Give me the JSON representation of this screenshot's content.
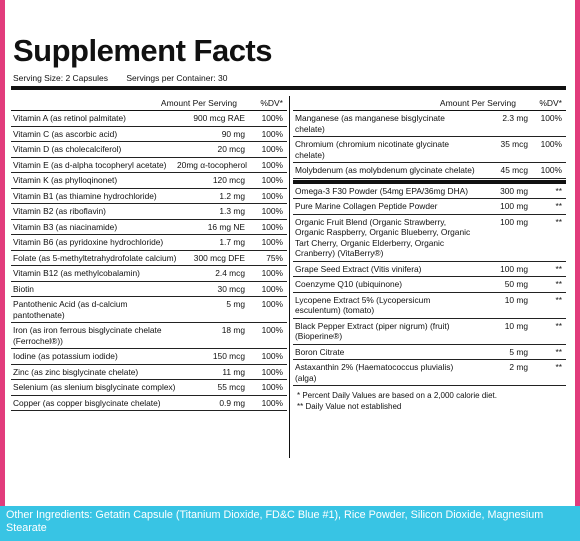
{
  "title": "Supplement Facts",
  "serving_size": "Serving Size: 2 Capsules",
  "servings_per_container": "Servings per Container: 30",
  "header": {
    "amount": "Amount Per Serving",
    "dv": "%DV*"
  },
  "left_rows": [
    {
      "name": "Vitamin A (as retinol palmitate)",
      "amount": "900 mcg RAE",
      "dv": "100%"
    },
    {
      "name": "Vitamin C (as ascorbic acid)",
      "amount": "90 mg",
      "dv": "100%"
    },
    {
      "name": "Vitamin D (as cholecalciferol)",
      "amount": "20 mcg",
      "dv": "100%"
    },
    {
      "name": "Vitamin E (as d-alpha tocopheryl acetate)",
      "amount": "20mg α-tocopherol",
      "dv": "100%"
    },
    {
      "name": "Vitamin K (as phylloqinonet)",
      "amount": "120 mcg",
      "dv": "100%"
    },
    {
      "name": "Vitamin B1 (as thiamine hydrochloride)",
      "amount": "1.2 mg",
      "dv": "100%"
    },
    {
      "name": "Vitamin B2 (as riboflavin)",
      "amount": "1.3 mg",
      "dv": "100%"
    },
    {
      "name": "Vitamin B3 (as niacinamide)",
      "amount": "16 mg NE",
      "dv": "100%"
    },
    {
      "name": "Vitamin B6 (as pyridoxine hydrochloride)",
      "amount": "1.7 mg",
      "dv": "100%"
    },
    {
      "name": "Folate (as 5-methyltetrahydrofolate calcium)",
      "amount": "300 mcg DFE",
      "dv": "75%"
    },
    {
      "name": "Vitamin B12 (as methylcobalamin)",
      "amount": "2.4 mcg",
      "dv": "100%"
    },
    {
      "name": "Biotin",
      "amount": "30 mcg",
      "dv": "100%"
    },
    {
      "name": "Pantothenic Acid (as d-calcium pantothenate)",
      "amount": "5 mg",
      "dv": "100%"
    },
    {
      "name": "Iron (as iron ferrous bisglycinate chelate (Ferrochel®))",
      "amount": "18 mg",
      "dv": "100%"
    },
    {
      "name": "Iodine (as potassium iodide)",
      "amount": "150 mcg",
      "dv": "100%"
    },
    {
      "name": "Zinc (as zinc bisglycinate chelate)",
      "amount": "11 mg",
      "dv": "100%"
    },
    {
      "name": "Selenium (as slenium bisglycinate complex)",
      "amount": "55 mcg",
      "dv": "100%"
    },
    {
      "name": "Copper (as copper bisglycinate chelate)",
      "amount": "0.9 mg",
      "dv": "100%"
    }
  ],
  "right_rows_top": [
    {
      "name": "Manganese (as manganese bisglycinate chelate)",
      "amount": "2.3 mg",
      "dv": "100%"
    },
    {
      "name": "Chromium (chromium nicotinate glycinate chelate)",
      "amount": "35 mcg",
      "dv": "100%"
    },
    {
      "name": "Molybdenum (as molybdenum glycinate chelate)",
      "amount": "45 mcg",
      "dv": "100%"
    }
  ],
  "right_rows_bottom": [
    {
      "name": "Omega-3 F30 Powder (54mg EPA/36mg DHA)",
      "amount": "300 mg",
      "dv": "**"
    },
    {
      "name": "Pure Marine Collagen Peptide Powder",
      "amount": "100 mg",
      "dv": "**"
    },
    {
      "name": "Organic Fruit Blend (Organic Strawberry, Organic Raspberry, Organic Blueberry, Organic Tart Cherry, Organic Elderberry, Organic Cranberry) (VitaBerry®)",
      "amount": "100 mg",
      "dv": "**"
    },
    {
      "name": "Grape Seed Extract (Vitis vinifera)",
      "amount": "100 mg",
      "dv": "**"
    },
    {
      "name": "Coenzyme Q10 (ubiquinone)",
      "amount": "50 mg",
      "dv": "**"
    },
    {
      "name": "Lycopene Extract 5% (Lycopersicum esculentum) (tomato)",
      "amount": "10 mg",
      "dv": "**"
    },
    {
      "name": "Black Pepper Extract (piper nigrum) (fruit) (Bioperine®)",
      "amount": "10 mg",
      "dv": "**"
    },
    {
      "name": "Boron Citrate",
      "amount": "5 mg",
      "dv": "**"
    },
    {
      "name": "Astaxanthin 2% (Haematococcus pluvialis) (alga)",
      "amount": "2 mg",
      "dv": "**"
    }
  ],
  "footnote1": "* Percent Daily Values are based on a 2,000 calorie diet.",
  "footnote2": "** Daily Value not established",
  "other_ingredients": "Other Ingredients: Getatin Capsule (Titanium Dioxide, FD&C Blue #1), Rice Powder, Silicon Dioxide, Magnesium Stearate",
  "colors": {
    "accent_pink": "#e23c7c",
    "accent_blue": "#38c4e4"
  }
}
